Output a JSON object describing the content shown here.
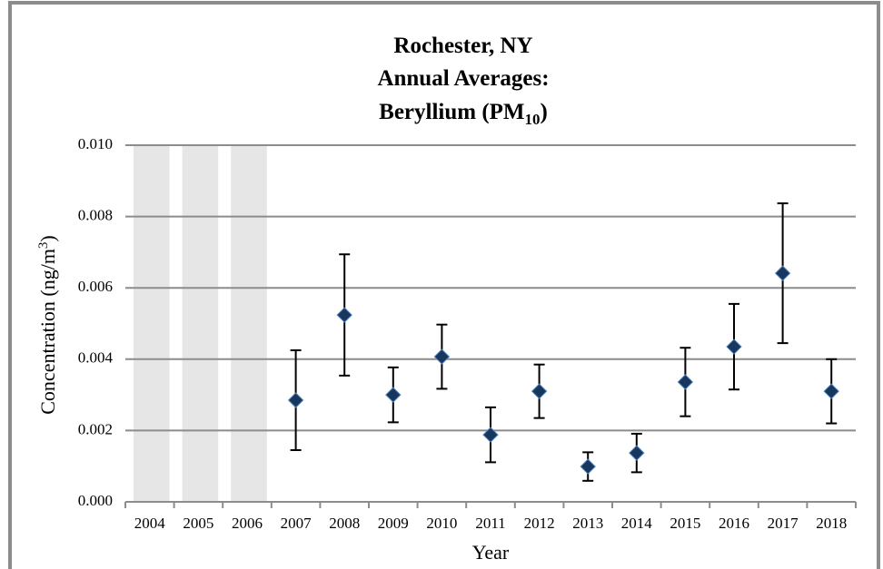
{
  "chart_data": {
    "type": "errorbar",
    "title": {
      "lines": [
        "Rochester, NY",
        "Annual Averages:",
        "Beryllium (PM"
      ],
      "subscript": "10",
      "suffix": ")"
    },
    "x_label": "Year",
    "y_label": {
      "text": "Concentration (ng/m",
      "superscript": "3",
      "suffix": ")"
    },
    "categories": [
      "2004",
      "2005",
      "2006",
      "2007",
      "2008",
      "2009",
      "2010",
      "2011",
      "2012",
      "2013",
      "2014",
      "2015",
      "2016",
      "2017",
      "2018"
    ],
    "values": [
      null,
      null,
      null,
      0.00285,
      0.00524,
      0.003,
      0.00407,
      0.00188,
      0.0031,
      0.00099,
      0.00137,
      0.00336,
      0.00435,
      0.00641,
      0.0031
    ],
    "errors": [
      null,
      null,
      null,
      0.0014,
      0.0017,
      0.00077,
      0.0009,
      0.00077,
      0.00075,
      0.0004,
      0.00054,
      0.00096,
      0.0012,
      0.00196,
      0.0009
    ],
    "color": "#17375e",
    "no_data_color": "#e6e6e6",
    "ylim": [
      0,
      0.01
    ],
    "yticks": [
      {
        "value": 0,
        "label": "0.000"
      },
      {
        "value": 0.002,
        "label": "0.002"
      },
      {
        "value": 0.004,
        "label": "0.004"
      },
      {
        "value": 0.006,
        "label": "0.006"
      },
      {
        "value": 0.008,
        "label": "0.008"
      },
      {
        "value": 0.01,
        "label": "0.010"
      }
    ],
    "grid": true
  }
}
